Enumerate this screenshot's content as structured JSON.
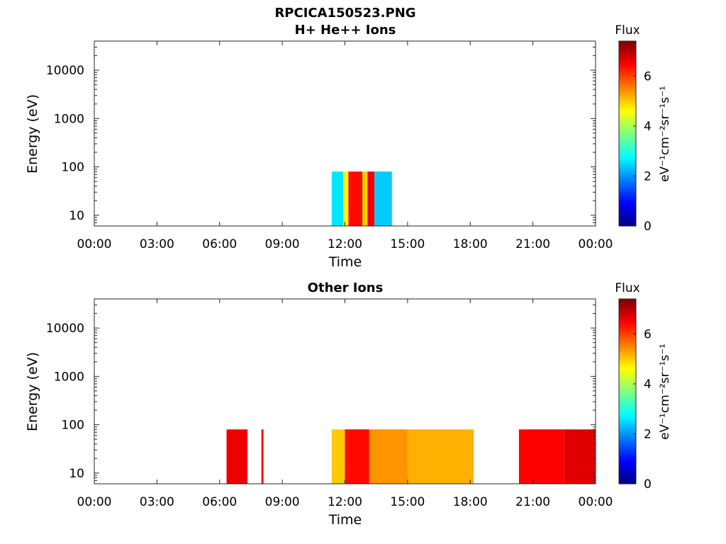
{
  "figure": {
    "title": "RPCICA150523.PNG"
  },
  "colorbar": {
    "label": "Flux",
    "unit_label": "eV⁻¹cm⁻²sr⁻¹s⁻¹",
    "ticks": [
      "0",
      "2",
      "4",
      "6"
    ],
    "range": [
      0,
      7.4
    ],
    "colormap": "jet"
  },
  "chart_data": [
    {
      "type": "heatmap",
      "title": "H+ He++ Ions",
      "xlabel": "Time",
      "ylabel": "Energy (eV)",
      "xlim": [
        "00:00",
        "24:00"
      ],
      "ylim": [
        6,
        40000
      ],
      "yscale": "log",
      "xtick_labels": [
        "00:00",
        "03:00",
        "06:00",
        "09:00",
        "12:00",
        "15:00",
        "18:00",
        "21:00",
        "00:00"
      ],
      "ytick_labels": [
        "10",
        "100",
        "1000",
        "10000"
      ],
      "energy_range_eV": [
        6,
        80
      ],
      "segments": [
        {
          "start": "11:22",
          "end": "11:55",
          "mean_flux": 2.6
        },
        {
          "start": "11:55",
          "end": "12:10",
          "mean_flux": 4.6
        },
        {
          "start": "12:10",
          "end": "12:50",
          "mean_flux": 6.4
        },
        {
          "start": "12:50",
          "end": "13:05",
          "mean_flux": 5.0
        },
        {
          "start": "13:05",
          "end": "13:25",
          "mean_flux": 6.6
        },
        {
          "start": "13:25",
          "end": "14:15",
          "mean_flux": 2.4
        }
      ]
    },
    {
      "type": "heatmap",
      "title": "Other Ions",
      "xlabel": "Time",
      "ylabel": "Energy (eV)",
      "xlim": [
        "00:00",
        "24:00"
      ],
      "ylim": [
        6,
        40000
      ],
      "yscale": "log",
      "xtick_labels": [
        "00:00",
        "03:00",
        "06:00",
        "09:00",
        "12:00",
        "15:00",
        "18:00",
        "21:00",
        "00:00"
      ],
      "ytick_labels": [
        "10",
        "100",
        "1000",
        "10000"
      ],
      "energy_range_eV": [
        6,
        80
      ],
      "segments": [
        {
          "start": "06:20",
          "end": "07:20",
          "mean_flux": 6.6
        },
        {
          "start": "08:00",
          "end": "08:06",
          "mean_flux": 6.4
        },
        {
          "start": "11:22",
          "end": "12:00",
          "mean_flux": 5.0
        },
        {
          "start": "12:00",
          "end": "13:10",
          "mean_flux": 6.4
        },
        {
          "start": "13:10",
          "end": "15:00",
          "mean_flux": 5.4
        },
        {
          "start": "15:00",
          "end": "18:10",
          "mean_flux": 5.2
        },
        {
          "start": "20:20",
          "end": "22:30",
          "mean_flux": 6.5
        },
        {
          "start": "22:30",
          "end": "24:00",
          "mean_flux": 6.7
        }
      ]
    }
  ]
}
